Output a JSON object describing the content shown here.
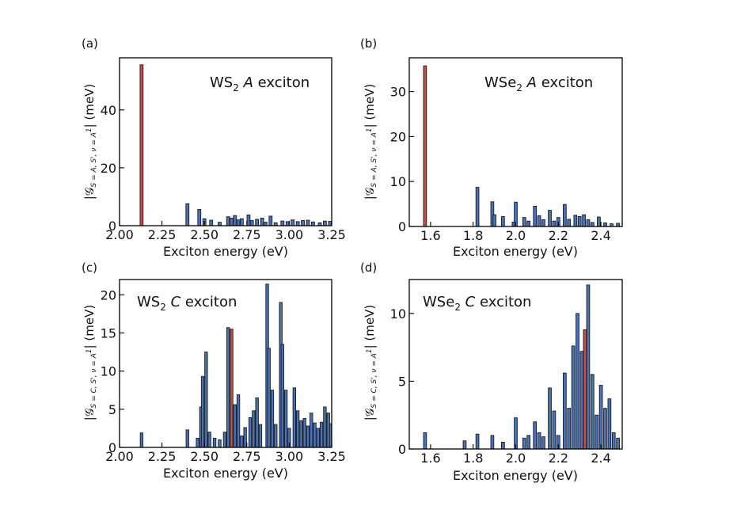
{
  "figure": {
    "description_free": true
  },
  "colors": {
    "primary": "#4a72b8",
    "highlight": "#c84a4a"
  },
  "panels": [
    {
      "letter": "(a)",
      "title": {
        "pre": "WS",
        "sub": "2",
        "italic": " A",
        "post": " exciton"
      },
      "ylabel": {
        "bar_left": "|",
        "main": "𝒢",
        "sub": "S = A, S', ν = A",
        "subsup": "1",
        "subsub": "",
        "tail": "| (meV)"
      },
      "xlabel": "Exciton energy (eV)",
      "chart_data": {
        "type": "bar",
        "title": "WS2 A exciton",
        "xlabel": "Exciton energy (eV)",
        "ylabel": "|G_{S=A,S',v=A1'}| (meV)",
        "xlim": [
          2.0,
          3.25
        ],
        "ylim": [
          0,
          58
        ],
        "xticks": [
          2.0,
          2.25,
          2.5,
          2.75,
          3.0,
          3.25
        ],
        "xtick_labels": [
          "2.00",
          "2.25",
          "2.50",
          "2.75",
          "3.00",
          "3.25"
        ],
        "yticks": [
          0,
          20,
          40
        ],
        "ytick_labels": [
          "0",
          "20",
          "40"
        ],
        "bar_width": 0.018,
        "bars": [
          {
            "x": 2.13,
            "y": 55.6,
            "highlight": true
          },
          {
            "x": 2.4,
            "y": 7.6
          },
          {
            "x": 2.47,
            "y": 5.6
          },
          {
            "x": 2.5,
            "y": 2.4
          },
          {
            "x": 2.54,
            "y": 1.9
          },
          {
            "x": 2.59,
            "y": 1.2
          },
          {
            "x": 2.64,
            "y": 3.1
          },
          {
            "x": 2.66,
            "y": 2.6
          },
          {
            "x": 2.68,
            "y": 3.5
          },
          {
            "x": 2.7,
            "y": 2.0
          },
          {
            "x": 2.72,
            "y": 2.4
          },
          {
            "x": 2.76,
            "y": 3.7
          },
          {
            "x": 2.78,
            "y": 1.8
          },
          {
            "x": 2.81,
            "y": 2.2
          },
          {
            "x": 2.84,
            "y": 2.6
          },
          {
            "x": 2.86,
            "y": 1.2
          },
          {
            "x": 2.89,
            "y": 3.3
          },
          {
            "x": 2.92,
            "y": 1.0
          },
          {
            "x": 2.96,
            "y": 1.6
          },
          {
            "x": 2.99,
            "y": 1.4
          },
          {
            "x": 3.02,
            "y": 2.0
          },
          {
            "x": 3.05,
            "y": 1.4
          },
          {
            "x": 3.08,
            "y": 1.8
          },
          {
            "x": 3.11,
            "y": 1.9
          },
          {
            "x": 3.14,
            "y": 1.3
          },
          {
            "x": 3.18,
            "y": 1.0
          },
          {
            "x": 3.21,
            "y": 1.6
          },
          {
            "x": 3.24,
            "y": 1.5
          }
        ]
      }
    },
    {
      "letter": "(b)",
      "title": {
        "pre": "WSe",
        "sub": "2",
        "italic": " A",
        "post": " exciton"
      },
      "ylabel": {
        "bar_left": "|",
        "main": "𝒢",
        "sub": "S = A, S', ν = A",
        "subsup": "1",
        "subsub": "",
        "tail": "| (meV)"
      },
      "xlabel": "Exciton energy (eV)",
      "chart_data": {
        "type": "bar",
        "title": "WSe2 A exciton",
        "xlabel": "Exciton energy (eV)",
        "ylabel": "|G_{S=A,S',v=A1'}| (meV)",
        "xlim": [
          1.5,
          2.5
        ],
        "ylim": [
          0,
          37.5
        ],
        "xticks": [
          1.6,
          1.8,
          2.0,
          2.2,
          2.4
        ],
        "xtick_labels": [
          "1.6",
          "1.8",
          "2.0",
          "2.2",
          "2.4"
        ],
        "yticks": [
          0,
          10,
          20,
          30
        ],
        "ytick_labels": [
          "0",
          "10",
          "20",
          "30"
        ],
        "bar_width": 0.014,
        "bars": [
          {
            "x": 1.574,
            "y": 35.7,
            "highlight": true
          },
          {
            "x": 1.82,
            "y": 8.7
          },
          {
            "x": 1.89,
            "y": 5.5
          },
          {
            "x": 1.9,
            "y": 2.6
          },
          {
            "x": 1.94,
            "y": 2.2
          },
          {
            "x": 1.99,
            "y": 1.0
          },
          {
            "x": 2.0,
            "y": 5.4
          },
          {
            "x": 2.04,
            "y": 2.0
          },
          {
            "x": 2.06,
            "y": 1.2
          },
          {
            "x": 2.09,
            "y": 4.5
          },
          {
            "x": 2.11,
            "y": 2.4
          },
          {
            "x": 2.13,
            "y": 1.5
          },
          {
            "x": 2.16,
            "y": 3.6
          },
          {
            "x": 2.18,
            "y": 1.2
          },
          {
            "x": 2.2,
            "y": 2.0
          },
          {
            "x": 2.23,
            "y": 4.9
          },
          {
            "x": 2.25,
            "y": 1.6
          },
          {
            "x": 2.28,
            "y": 2.5
          },
          {
            "x": 2.3,
            "y": 2.2
          },
          {
            "x": 2.32,
            "y": 2.6
          },
          {
            "x": 2.34,
            "y": 1.5
          },
          {
            "x": 2.36,
            "y": 0.9
          },
          {
            "x": 2.39,
            "y": 2.1
          },
          {
            "x": 2.42,
            "y": 0.8
          },
          {
            "x": 2.45,
            "y": 0.6
          },
          {
            "x": 2.48,
            "y": 0.7
          }
        ]
      }
    },
    {
      "letter": "(c)",
      "title": {
        "pre": "WS",
        "sub": "2",
        "italic": " C",
        "post": " exciton"
      },
      "ylabel": {
        "bar_left": "|",
        "main": "𝒢",
        "sub": "S = C, S', ν = A",
        "subsup": "1",
        "subsub": "",
        "tail": "| (meV)"
      },
      "xlabel": "Exciton energy (eV)",
      "chart_data": {
        "type": "bar",
        "title": "WS2 C exciton",
        "xlabel": "Exciton energy (eV)",
        "ylabel": "|G_{S=C,S',v=A1'}| (meV)",
        "xlim": [
          2.0,
          3.25
        ],
        "ylim": [
          0,
          22
        ],
        "xticks": [
          2.0,
          2.25,
          2.5,
          2.75,
          3.0,
          3.25
        ],
        "xtick_labels": [
          "2.00",
          "2.25",
          "2.50",
          "2.75",
          "3.00",
          "3.25"
        ],
        "yticks": [
          0,
          5,
          10,
          15,
          20
        ],
        "ytick_labels": [
          "0",
          "5",
          "10",
          "15",
          "20"
        ],
        "bar_width": 0.016,
        "bars": [
          {
            "x": 2.13,
            "y": 1.9
          },
          {
            "x": 2.4,
            "y": 2.3
          },
          {
            "x": 2.46,
            "y": 1.2
          },
          {
            "x": 2.48,
            "y": 5.3
          },
          {
            "x": 2.49,
            "y": 9.3
          },
          {
            "x": 2.51,
            "y": 12.5
          },
          {
            "x": 2.53,
            "y": 2.0
          },
          {
            "x": 2.56,
            "y": 1.2
          },
          {
            "x": 2.59,
            "y": 1.0
          },
          {
            "x": 2.62,
            "y": 2.0
          },
          {
            "x": 2.64,
            "y": 15.7
          },
          {
            "x": 2.66,
            "y": 15.5,
            "highlight": true
          },
          {
            "x": 2.68,
            "y": 5.6
          },
          {
            "x": 2.7,
            "y": 6.9
          },
          {
            "x": 2.72,
            "y": 1.5
          },
          {
            "x": 2.74,
            "y": 2.6
          },
          {
            "x": 2.77,
            "y": 3.9
          },
          {
            "x": 2.79,
            "y": 4.8
          },
          {
            "x": 2.81,
            "y": 6.5
          },
          {
            "x": 2.83,
            "y": 3.0
          },
          {
            "x": 2.87,
            "y": 21.4
          },
          {
            "x": 2.88,
            "y": 13.0
          },
          {
            "x": 2.9,
            "y": 7.5
          },
          {
            "x": 2.92,
            "y": 3.0
          },
          {
            "x": 2.95,
            "y": 19.0
          },
          {
            "x": 2.96,
            "y": 13.5
          },
          {
            "x": 2.98,
            "y": 7.5
          },
          {
            "x": 3.0,
            "y": 2.5
          },
          {
            "x": 3.03,
            "y": 7.8
          },
          {
            "x": 3.05,
            "y": 4.8
          },
          {
            "x": 3.07,
            "y": 3.5
          },
          {
            "x": 3.09,
            "y": 3.8
          },
          {
            "x": 3.11,
            "y": 2.8
          },
          {
            "x": 3.13,
            "y": 4.5
          },
          {
            "x": 3.15,
            "y": 3.2
          },
          {
            "x": 3.17,
            "y": 2.5
          },
          {
            "x": 3.19,
            "y": 3.3
          },
          {
            "x": 3.21,
            "y": 5.3
          },
          {
            "x": 3.23,
            "y": 4.5
          },
          {
            "x": 3.245,
            "y": 3.1
          }
        ]
      }
    },
    {
      "letter": "(d)",
      "title": {
        "pre": "WSe",
        "sub": "2",
        "italic": " C",
        "post": " exciton"
      },
      "ylabel": {
        "bar_left": "|",
        "main": "𝒢",
        "sub": "S = C, S', ν = A",
        "subsup": "1",
        "subsub": "",
        "tail": "| (meV)"
      },
      "xlabel": "Exciton energy (eV)",
      "chart_data": {
        "type": "bar",
        "title": "WSe2 C exciton",
        "xlabel": "Exciton energy (eV)",
        "ylabel": "|G_{S=C,S',v=A1'}| (meV)",
        "xlim": [
          1.5,
          2.5
        ],
        "ylim": [
          0,
          12.5
        ],
        "xticks": [
          1.6,
          1.8,
          2.0,
          2.2,
          2.4
        ],
        "xtick_labels": [
          "1.6",
          "1.8",
          "2.0",
          "2.2",
          "2.4"
        ],
        "yticks": [
          0,
          5,
          10
        ],
        "ytick_labels": [
          "0",
          "5",
          "10"
        ],
        "bar_width": 0.014,
        "bars": [
          {
            "x": 1.574,
            "y": 1.2
          },
          {
            "x": 1.76,
            "y": 0.6
          },
          {
            "x": 1.82,
            "y": 1.1
          },
          {
            "x": 1.89,
            "y": 1.0
          },
          {
            "x": 1.94,
            "y": 0.5
          },
          {
            "x": 2.0,
            "y": 2.3
          },
          {
            "x": 2.04,
            "y": 0.8
          },
          {
            "x": 2.06,
            "y": 1.0
          },
          {
            "x": 2.09,
            "y": 2.0
          },
          {
            "x": 2.11,
            "y": 1.2
          },
          {
            "x": 2.13,
            "y": 0.9
          },
          {
            "x": 2.16,
            "y": 4.5
          },
          {
            "x": 2.18,
            "y": 2.8
          },
          {
            "x": 2.2,
            "y": 1.0
          },
          {
            "x": 2.23,
            "y": 5.6
          },
          {
            "x": 2.25,
            "y": 3.0
          },
          {
            "x": 2.27,
            "y": 7.6
          },
          {
            "x": 2.29,
            "y": 10.0
          },
          {
            "x": 2.31,
            "y": 7.2
          },
          {
            "x": 2.325,
            "y": 8.8,
            "highlight": true
          },
          {
            "x": 2.34,
            "y": 12.1
          },
          {
            "x": 2.36,
            "y": 5.5
          },
          {
            "x": 2.38,
            "y": 2.5
          },
          {
            "x": 2.4,
            "y": 4.7
          },
          {
            "x": 2.42,
            "y": 3.0
          },
          {
            "x": 2.44,
            "y": 3.7
          },
          {
            "x": 2.46,
            "y": 1.2
          },
          {
            "x": 2.48,
            "y": 0.8
          }
        ]
      }
    }
  ]
}
